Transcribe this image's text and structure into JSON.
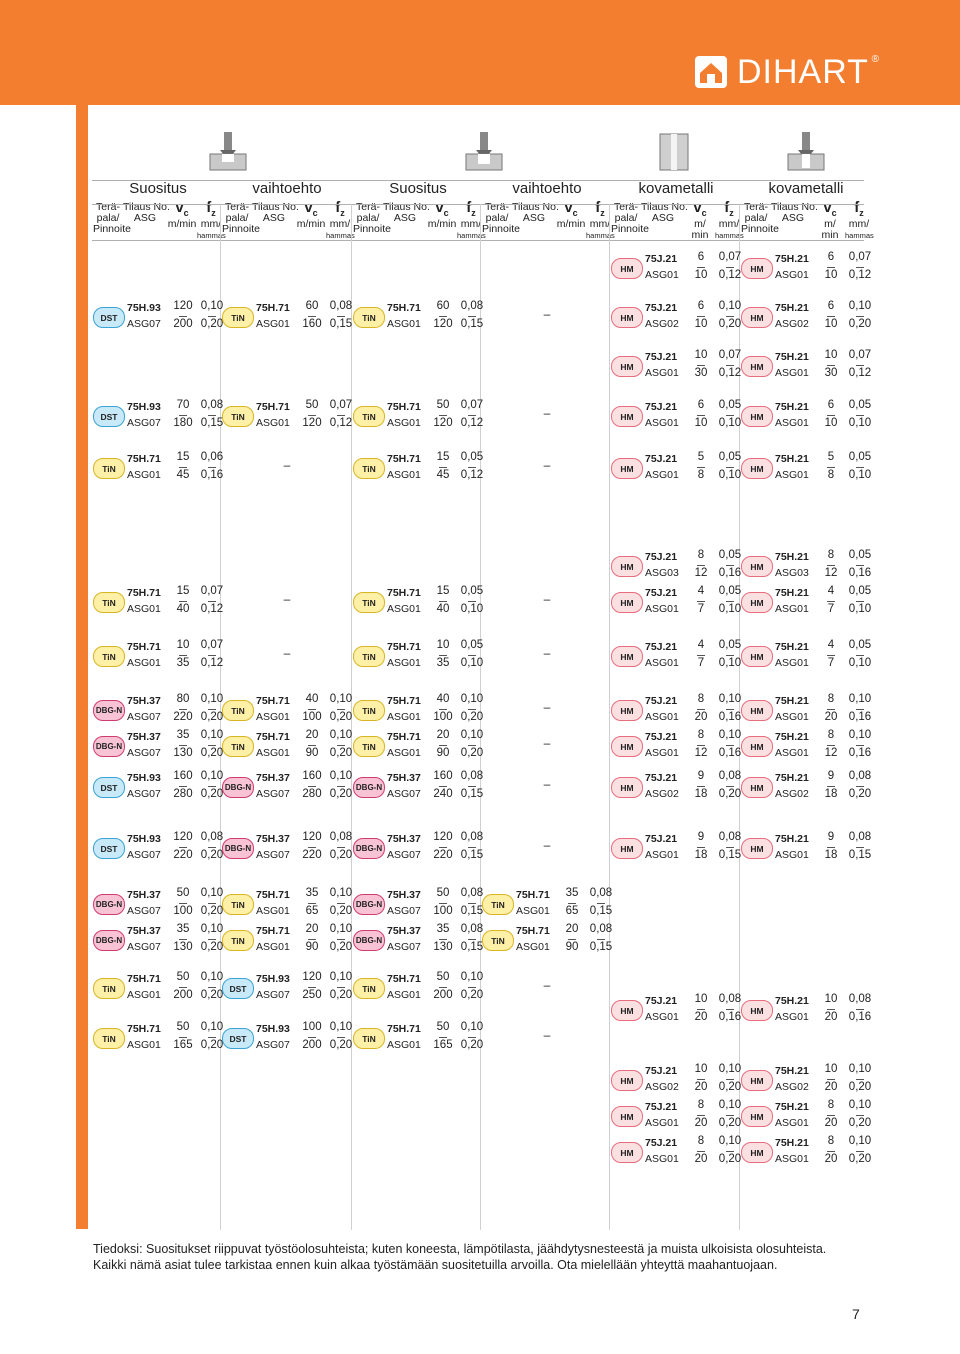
{
  "brand": {
    "name": "DIHART",
    "reg": "®",
    "color": "#f47e30"
  },
  "groups": [
    "Suositus",
    "vaihtoehto",
    "Suositus",
    "vaihtoehto",
    "kovametalli",
    "kovametalli"
  ],
  "subheaders": {
    "pala": [
      "Terä-",
      "pala/",
      "Pinnoite"
    ],
    "tilaus": [
      "Tilaus No.",
      "ASG"
    ],
    "vc": "v",
    "vc_sub": "c",
    "vc_unit_a": "m/min",
    "vc_unit_b1": "m/",
    "vc_unit_b2": "min",
    "fz": "f",
    "fz_sub": "z",
    "fz_unit": "mm/",
    "fz_hammas": "hammas"
  },
  "rows": [
    {
      "id": "r0",
      "top": 250,
      "cells": [
        null,
        null,
        null,
        null,
        {
          "b": "HM",
          "code": "75J.21",
          "asg": "ASG01",
          "vc": [
            "6",
            "10"
          ],
          "fz": [
            "0,07",
            "0,12"
          ]
        },
        {
          "b": "HM",
          "code": "75H.21",
          "asg": "ASG01",
          "vc": [
            "6",
            "10"
          ],
          "fz": [
            "0,07",
            "0,12"
          ]
        }
      ]
    },
    {
      "id": "r1",
      "top": 299,
      "cells": [
        {
          "b": "DST",
          "code": "75H.93",
          "asg": "ASG07",
          "vc": [
            "120",
            "200"
          ],
          "fz": [
            "0,10",
            "0,20"
          ]
        },
        {
          "b": "TiN",
          "code": "75H.71",
          "asg": "ASG01",
          "vc": [
            "60",
            "160"
          ],
          "fz": [
            "0,08",
            "0,15"
          ]
        },
        {
          "b": "TiN",
          "code": "75H.71",
          "asg": "ASG01",
          "vc": [
            "60",
            "120"
          ],
          "fz": [
            "0,08",
            "0,15"
          ]
        },
        "–",
        {
          "b": "HM",
          "code": "75J.21",
          "asg": "ASG02",
          "vc": [
            "6",
            "10"
          ],
          "fz": [
            "0,10",
            "0,20"
          ]
        },
        {
          "b": "HM",
          "code": "75H.21",
          "asg": "ASG02",
          "vc": [
            "6",
            "10"
          ],
          "fz": [
            "0,10",
            "0,20"
          ]
        }
      ]
    },
    {
      "id": "r2",
      "top": 348,
      "cells": [
        null,
        null,
        null,
        null,
        {
          "b": "HM",
          "code": "75J.21",
          "asg": "ASG01",
          "vc": [
            "10",
            "30"
          ],
          "fz": [
            "0,07",
            "0,12"
          ]
        },
        {
          "b": "HM",
          "code": "75H.21",
          "asg": "ASG01",
          "vc": [
            "10",
            "30"
          ],
          "fz": [
            "0,07",
            "0,12"
          ]
        }
      ]
    },
    {
      "id": "r3",
      "top": 398,
      "cells": [
        {
          "b": "DST",
          "code": "75H.93",
          "asg": "ASG07",
          "vc": [
            "70",
            "180"
          ],
          "fz": [
            "0,08",
            "0,15"
          ]
        },
        {
          "b": "TiN",
          "code": "75H.71",
          "asg": "ASG01",
          "vc": [
            "50",
            "120"
          ],
          "fz": [
            "0,07",
            "0,12"
          ]
        },
        {
          "b": "TiN",
          "code": "75H.71",
          "asg": "ASG01",
          "vc": [
            "50",
            "120"
          ],
          "fz": [
            "0,07",
            "0,12"
          ]
        },
        "–",
        {
          "b": "HM",
          "code": "75J.21",
          "asg": "ASG01",
          "vc": [
            "6",
            "10"
          ],
          "fz": [
            "0,05",
            "0,10"
          ]
        },
        {
          "b": "HM",
          "code": "75H.21",
          "asg": "ASG01",
          "vc": [
            "6",
            "10"
          ],
          "fz": [
            "0,05",
            "0,10"
          ]
        }
      ]
    },
    {
      "id": "r4",
      "top": 450,
      "cells": [
        {
          "b": "TiN",
          "code": "75H.71",
          "asg": "ASG01",
          "vc": [
            "15",
            "45"
          ],
          "fz": [
            "0,06",
            "0,16"
          ]
        },
        "–",
        {
          "b": "TiN",
          "code": "75H.71",
          "asg": "ASG01",
          "vc": [
            "15",
            "45"
          ],
          "fz": [
            "0,05",
            "0,12"
          ]
        },
        "–",
        {
          "b": "HM",
          "code": "75J.21",
          "asg": "ASG01",
          "vc": [
            "5",
            "8"
          ],
          "fz": [
            "0,05",
            "0,10"
          ]
        },
        {
          "b": "HM",
          "code": "75H.21",
          "asg": "ASG01",
          "vc": [
            "5",
            "8"
          ],
          "fz": [
            "0,05",
            "0,10"
          ]
        }
      ]
    },
    {
      "id": "r5",
      "top": 548,
      "cells": [
        null,
        null,
        null,
        null,
        {
          "b": "HM",
          "code": "75J.21",
          "asg": "ASG03",
          "vc": [
            "8",
            "12"
          ],
          "fz": [
            "0,05",
            "0,16"
          ]
        },
        {
          "b": "HM",
          "code": "75H.21",
          "asg": "ASG03",
          "vc": [
            "8",
            "12"
          ],
          "fz": [
            "0,05",
            "0,16"
          ]
        }
      ]
    },
    {
      "id": "r6",
      "top": 584,
      "cells": [
        {
          "b": "TiN",
          "code": "75H.71",
          "asg": "ASG01",
          "vc": [
            "15",
            "40"
          ],
          "fz": [
            "0,07",
            "0,12"
          ]
        },
        "–",
        {
          "b": "TiN",
          "code": "75H.71",
          "asg": "ASG01",
          "vc": [
            "15",
            "40"
          ],
          "fz": [
            "0,05",
            "0,10"
          ]
        },
        "–",
        {
          "b": "HM",
          "code": "75J.21",
          "asg": "ASG01",
          "vc": [
            "4",
            "7"
          ],
          "fz": [
            "0,05",
            "0,10"
          ]
        },
        {
          "b": "HM",
          "code": "75H.21",
          "asg": "ASG01",
          "vc": [
            "4",
            "7"
          ],
          "fz": [
            "0,05",
            "0,10"
          ]
        }
      ]
    },
    {
      "id": "r7",
      "top": 638,
      "cells": [
        {
          "b": "TiN",
          "code": "75H.71",
          "asg": "ASG01",
          "vc": [
            "10",
            "35"
          ],
          "fz": [
            "0,07",
            "0,12"
          ]
        },
        "–",
        {
          "b": "TiN",
          "code": "75H.71",
          "asg": "ASG01",
          "vc": [
            "10",
            "35"
          ],
          "fz": [
            "0,05",
            "0,10"
          ]
        },
        "–",
        {
          "b": "HM",
          "code": "75J.21",
          "asg": "ASG01",
          "vc": [
            "4",
            "7"
          ],
          "fz": [
            "0,05",
            "0,10"
          ]
        },
        {
          "b": "HM",
          "code": "75H.21",
          "asg": "ASG01",
          "vc": [
            "4",
            "7"
          ],
          "fz": [
            "0,05",
            "0,10"
          ]
        }
      ]
    },
    {
      "id": "r8",
      "top": 692,
      "cells": [
        {
          "b": "DBG-N",
          "code": "75H.37",
          "asg": "ASG07",
          "vc": [
            "80",
            "220"
          ],
          "fz": [
            "0,10",
            "0,20"
          ]
        },
        {
          "b": "TiN",
          "code": "75H.71",
          "asg": "ASG01",
          "vc": [
            "40",
            "100"
          ],
          "fz": [
            "0,10",
            "0,20"
          ]
        },
        {
          "b": "TiN",
          "code": "75H.71",
          "asg": "ASG01",
          "vc": [
            "40",
            "100"
          ],
          "fz": [
            "0,10",
            "0,20"
          ]
        },
        "–",
        {
          "b": "HM",
          "code": "75J.21",
          "asg": "ASG01",
          "vc": [
            "8",
            "20"
          ],
          "fz": [
            "0,10",
            "0,16"
          ]
        },
        {
          "b": "HM",
          "code": "75H.21",
          "asg": "ASG01",
          "vc": [
            "8",
            "20"
          ],
          "fz": [
            "0,10",
            "0,16"
          ]
        }
      ]
    },
    {
      "id": "r9",
      "top": 728,
      "cells": [
        {
          "b": "DBG-N",
          "code": "75H.37",
          "asg": "ASG07",
          "vc": [
            "35",
            "130"
          ],
          "fz": [
            "0,10",
            "0,20"
          ]
        },
        {
          "b": "TiN",
          "code": "75H.71",
          "asg": "ASG01",
          "vc": [
            "20",
            "90"
          ],
          "fz": [
            "0,10",
            "0,20"
          ]
        },
        {
          "b": "TiN",
          "code": "75H.71",
          "asg": "ASG01",
          "vc": [
            "20",
            "90"
          ],
          "fz": [
            "0,10",
            "0,20"
          ]
        },
        "–",
        {
          "b": "HM",
          "code": "75J.21",
          "asg": "ASG01",
          "vc": [
            "8",
            "12"
          ],
          "fz": [
            "0,10",
            "0,16"
          ]
        },
        {
          "b": "HM",
          "code": "75H.21",
          "asg": "ASG01",
          "vc": [
            "8",
            "12"
          ],
          "fz": [
            "0,10",
            "0,16"
          ]
        }
      ]
    },
    {
      "id": "r10",
      "top": 769,
      "cells": [
        {
          "b": "DST",
          "code": "75H.93",
          "asg": "ASG07",
          "vc": [
            "160",
            "280"
          ],
          "fz": [
            "0,10",
            "0,20"
          ]
        },
        {
          "b": "DBG-N",
          "code": "75H.37",
          "asg": "ASG07",
          "vc": [
            "160",
            "280"
          ],
          "fz": [
            "0,10",
            "0,20"
          ]
        },
        {
          "b": "DBG-N",
          "code": "75H.37",
          "asg": "ASG07",
          "vc": [
            "160",
            "240"
          ],
          "fz": [
            "0,08",
            "0,15"
          ]
        },
        "–",
        {
          "b": "HM",
          "code": "75J.21",
          "asg": "ASG02",
          "vc": [
            "9",
            "18"
          ],
          "fz": [
            "0,08",
            "0,20"
          ]
        },
        {
          "b": "HM",
          "code": "75H.21",
          "asg": "ASG02",
          "vc": [
            "9",
            "18"
          ],
          "fz": [
            "0,08",
            "0,20"
          ]
        }
      ]
    },
    {
      "id": "r11",
      "top": 830,
      "cells": [
        {
          "b": "DST",
          "code": "75H.93",
          "asg": "ASG07",
          "vc": [
            "120",
            "220"
          ],
          "fz": [
            "0,08",
            "0,20"
          ]
        },
        {
          "b": "DBG-N",
          "code": "75H.37",
          "asg": "ASG07",
          "vc": [
            "120",
            "220"
          ],
          "fz": [
            "0,08",
            "0,20"
          ]
        },
        {
          "b": "DBG-N",
          "code": "75H.37",
          "asg": "ASG07",
          "vc": [
            "120",
            "220"
          ],
          "fz": [
            "0,08",
            "0,15"
          ]
        },
        "–",
        {
          "b": "HM",
          "code": "75J.21",
          "asg": "ASG01",
          "vc": [
            "9",
            "18"
          ],
          "fz": [
            "0,08",
            "0,15"
          ]
        },
        {
          "b": "HM",
          "code": "75H.21",
          "asg": "ASG01",
          "vc": [
            "9",
            "18"
          ],
          "fz": [
            "0,08",
            "0,15"
          ]
        }
      ]
    },
    {
      "id": "r12",
      "top": 886,
      "cells": [
        {
          "b": "DBG-N",
          "code": "75H.37",
          "asg": "ASG07",
          "vc": [
            "50",
            "100"
          ],
          "fz": [
            "0,10",
            "0,20"
          ]
        },
        {
          "b": "TiN",
          "code": "75H.71",
          "asg": "ASG01",
          "vc": [
            "35",
            "65"
          ],
          "fz": [
            "0,10",
            "0,20"
          ]
        },
        {
          "b": "DBG-N",
          "code": "75H.37",
          "asg": "ASG07",
          "vc": [
            "50",
            "100"
          ],
          "fz": [
            "0,08",
            "0,15"
          ]
        },
        {
          "b": "TiN",
          "code": "75H.71",
          "asg": "ASG01",
          "vc": [
            "35",
            "65"
          ],
          "fz": [
            "0,08",
            "0,15"
          ]
        },
        null,
        null
      ]
    },
    {
      "id": "r13",
      "top": 922,
      "cells": [
        {
          "b": "DBG-N",
          "code": "75H.37",
          "asg": "ASG07",
          "vc": [
            "35",
            "130"
          ],
          "fz": [
            "0,10",
            "0,20"
          ]
        },
        {
          "b": "TiN",
          "code": "75H.71",
          "asg": "ASG01",
          "vc": [
            "20",
            "90"
          ],
          "fz": [
            "0,10",
            "0,20"
          ]
        },
        {
          "b": "DBG-N",
          "code": "75H.37",
          "asg": "ASG07",
          "vc": [
            "35",
            "130"
          ],
          "fz": [
            "0,08",
            "0,15"
          ]
        },
        {
          "b": "TiN",
          "code": "75H.71",
          "asg": "ASG01",
          "vc": [
            "20",
            "90"
          ],
          "fz": [
            "0,08",
            "0,15"
          ]
        },
        null,
        null
      ]
    },
    {
      "id": "r14",
      "top": 970,
      "cells": [
        {
          "b": "TiN",
          "code": "75H.71",
          "asg": "ASG01",
          "vc": [
            "50",
            "200"
          ],
          "fz": [
            "0,10",
            "0,20"
          ]
        },
        {
          "b": "DST",
          "code": "75H.93",
          "asg": "ASG07",
          "vc": [
            "120",
            "250"
          ],
          "fz": [
            "0,10",
            "0,20"
          ]
        },
        {
          "b": "TiN",
          "code": "75H.71",
          "asg": "ASG01",
          "vc": [
            "50",
            "200"
          ],
          "fz": [
            "0,10",
            "0,20"
          ]
        },
        "–",
        null,
        null
      ]
    },
    {
      "id": "r14b",
      "top": 992,
      "cells": [
        null,
        null,
        null,
        null,
        {
          "b": "HM",
          "code": "75J.21",
          "asg": "ASG01",
          "vc": [
            "10",
            "20"
          ],
          "fz": [
            "0,08",
            "0,16"
          ]
        },
        {
          "b": "HM",
          "code": "75H.21",
          "asg": "ASG01",
          "vc": [
            "10",
            "20"
          ],
          "fz": [
            "0,08",
            "0,16"
          ]
        }
      ]
    },
    {
      "id": "r15",
      "top": 1020,
      "cells": [
        {
          "b": "TiN",
          "code": "75H.71",
          "asg": "ASG01",
          "vc": [
            "50",
            "165"
          ],
          "fz": [
            "0,10",
            "0,20"
          ]
        },
        {
          "b": "DST",
          "code": "75H.93",
          "asg": "ASG07",
          "vc": [
            "100",
            "200"
          ],
          "fz": [
            "0,10",
            "0,20"
          ]
        },
        {
          "b": "TiN",
          "code": "75H.71",
          "asg": "ASG01",
          "vc": [
            "50",
            "165"
          ],
          "fz": [
            "0,10",
            "0,20"
          ]
        },
        "–",
        null,
        null
      ]
    },
    {
      "id": "r16",
      "top": 1062,
      "cells": [
        null,
        null,
        null,
        null,
        {
          "b": "HM",
          "code": "75J.21",
          "asg": "ASG02",
          "vc": [
            "10",
            "20"
          ],
          "fz": [
            "0,10",
            "0,20"
          ]
        },
        {
          "b": "HM",
          "code": "75H.21",
          "asg": "ASG02",
          "vc": [
            "10",
            "20"
          ],
          "fz": [
            "0,10",
            "0,20"
          ]
        }
      ]
    },
    {
      "id": "r17",
      "top": 1098,
      "cells": [
        null,
        null,
        null,
        null,
        {
          "b": "HM",
          "code": "75J.21",
          "asg": "ASG01",
          "vc": [
            "8",
            "20"
          ],
          "fz": [
            "0,10",
            "0,20"
          ]
        },
        {
          "b": "HM",
          "code": "75H.21",
          "asg": "ASG01",
          "vc": [
            "8",
            "20"
          ],
          "fz": [
            "0,10",
            "0,20"
          ]
        }
      ]
    },
    {
      "id": "r18",
      "top": 1134,
      "cells": [
        null,
        null,
        null,
        null,
        {
          "b": "HM",
          "code": "75J.21",
          "asg": "ASG01",
          "vc": [
            "8",
            "20"
          ],
          "fz": [
            "0,10",
            "0,20"
          ]
        },
        {
          "b": "HM",
          "code": "75H.21",
          "asg": "ASG01",
          "vc": [
            "8",
            "20"
          ],
          "fz": [
            "0,10",
            "0,20"
          ]
        }
      ]
    }
  ],
  "footnote": "Tiedoksi: Suositukset riippuvat työstöolosuhteista; kuten koneesta, lämpötilasta, jäähdytysnesteestä ja muista ulkoisista olosuhteista. Kaikki nämä asiat tulee tarkistaa ennen kuin alkaa työstämään suositetuilla arvoilla. Ota mielellään yhteyttä maahantuojaan.",
  "page_number": "7"
}
